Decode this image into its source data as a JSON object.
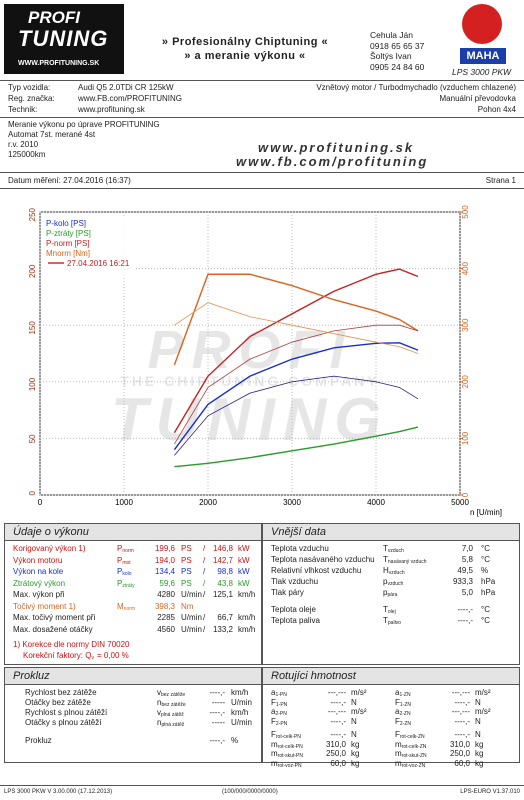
{
  "header": {
    "logo_top": "PROFI",
    "logo_bottom": "TUNING",
    "logo_url": "WWW.PROFITUNING.SK",
    "banner_1": "» Profesionálny Chiptuning «",
    "banner_2": "» a meranie výkonu «",
    "contacts": [
      "Cehula Ján",
      "0918 65 65 37",
      "Šoltýs Ivan",
      "0905 24 84 60"
    ],
    "maha": "MAHA",
    "maha_model": "LPS 3000 PKW"
  },
  "vehicle": {
    "rows": [
      [
        "Typ vozidla:",
        "Audi Q5 2.0TDi CR 125kW"
      ],
      [
        "Reg. značka:",
        "www.FB.com/PROFITUNING"
      ],
      [
        "Technik:",
        "www.profituning.sk"
      ]
    ],
    "right": [
      "Vznětový motor / Turbodmychadlo (vzduchem chlazené)",
      "Manuální převodovka",
      "Pohon 4x4"
    ]
  },
  "notes": [
    "Meranie výkonu po úprave PROFITUNING",
    "Automat 7st. merané 4st",
    "r.v. 2010",
    "125000km"
  ],
  "watermark": [
    "www.profituning.sk",
    "www.fb.com/profituning"
  ],
  "date": "Datum měření: 27.04.2016 (16:37)",
  "page": "Strana 1",
  "chart_watermark": {
    "top": "PROFI",
    "middle": "THE CHIPTUNING COMPANY",
    "bottom": "TUNING"
  },
  "chart_data": {
    "type": "line",
    "x_label": "n [U/min]",
    "legend_date": "27.04.2016 16:21",
    "grid": true,
    "x": [
      1600,
      2000,
      2500,
      3000,
      3500,
      4000,
      4280,
      4500
    ],
    "xlim": [
      0,
      5000
    ],
    "xticks": [
      0,
      1000,
      2000,
      3000,
      4000,
      5000
    ],
    "ylim": [
      0,
      250
    ],
    "yticks": [
      0,
      50,
      100,
      150,
      200,
      250
    ],
    "y2lim": [
      0,
      500
    ],
    "y2ticks": [
      0,
      100,
      200,
      300,
      400,
      500
    ],
    "series": [
      {
        "name": "P-kolo [PS]",
        "color": "#1c2fc4",
        "values": [
          40,
          80,
          105,
          120,
          130,
          134,
          134.4,
          128
        ]
      },
      {
        "name": "P-ztráty [PS]",
        "color": "#2a9a2a",
        "values": [
          25,
          28,
          33,
          39,
          45,
          52,
          56,
          60
        ]
      },
      {
        "name": "P-norm [PS]",
        "color": "#c62020",
        "values": [
          55,
          105,
          140,
          160,
          180,
          195,
          199.6,
          193
        ]
      },
      {
        "name": "Mnorm [Nm]",
        "color": "#d9641e",
        "axis": "y2",
        "values": [
          230,
          390,
          390,
          370,
          345,
          325,
          310,
          290
        ]
      },
      {
        "color": "#20207a",
        "values": [
          35,
          70,
          90,
          100,
          105,
          100,
          95,
          85
        ]
      },
      {
        "color": "#b04040",
        "values": [
          45,
          95,
          120,
          135,
          145,
          150,
          150,
          145
        ]
      },
      {
        "color": "#e09050",
        "axis": "y2",
        "values": [
          300,
          340,
          315,
          300,
          285,
          270,
          262,
          250
        ]
      }
    ]
  },
  "performance": {
    "title": "Údaje o výkonu",
    "separator": "/",
    "rows": [
      {
        "label": "Korigovaný výkon 1)",
        "sym": "P",
        "sub": "norm",
        "v1": "199,6",
        "u1": "PS",
        "v2": "146,8",
        "u2": "kW",
        "color": "#d01010"
      },
      {
        "label": "Výkon motoru",
        "sym": "P",
        "sub": "mot",
        "v1": "194,0",
        "u1": "PS",
        "v2": "142,7",
        "u2": "kW",
        "color": "#d01010"
      },
      {
        "label": "Výkon na kole",
        "sym": "P",
        "sub": "kolo",
        "v1": "134,4",
        "u1": "PS",
        "v2": "98,8",
        "u2": "kW",
        "color": "#1c2fc4"
      },
      {
        "label": "Ztrátový výkon",
        "sym": "P",
        "sub": "ztráty",
        "v1": "59,6",
        "u1": "PS",
        "v2": "43,8",
        "u2": "kW",
        "color": "#2a9a2a"
      },
      {
        "label": "Max. výkon při",
        "v1": "4280",
        "u1": "U/min",
        "v2": "125,1",
        "u2": "km/h",
        "color": "#222222"
      },
      {
        "label": "Točivý moment 1)",
        "sym": "M",
        "sub": "norm",
        "v1": "398,3",
        "u1": "Nm",
        "color": "#d9641e"
      },
      {
        "label": "Max. točivý moment při",
        "v1": "2285",
        "u1": "U/min",
        "v2": "66,7",
        "u2": "km/h",
        "color": "#222222"
      },
      {
        "label": "Max. dosažené otáčky",
        "v1": "4560",
        "u1": "U/min",
        "v2": "133,2",
        "u2": "km/h",
        "color": "#222222"
      }
    ],
    "note_1": "1) Korekce dle normy DIN 70020",
    "note_2": "Korekční faktory: Q",
    "note_2_sub": "v",
    "note_2_end": "=  0,00 %"
  },
  "external": {
    "title": "Vnější data",
    "rows": [
      {
        "label": "Teplota vzduchu",
        "sym": "T",
        "sub": "vzduch",
        "value": "7,0",
        "unit": "°C"
      },
      {
        "label": "Teplota nasávaného vzduchu",
        "sym": "T",
        "sub": "nasávaný vzduch",
        "value": "5,8",
        "unit": "°C"
      },
      {
        "label": "Relativní vlhkost vzduchu",
        "sym": "H",
        "sub": "vzduch",
        "value": "49,5",
        "unit": "%"
      },
      {
        "label": "Tlak vzduchu",
        "sym": "p",
        "sub": "vzduch",
        "value": "933,3",
        "unit": "hPa"
      },
      {
        "label": "Tlak páry",
        "sym": "p",
        "sub": "pára",
        "value": "5,0",
        "unit": "hPa"
      },
      {
        "label": "Teplota oleje",
        "sym": "T",
        "sub": "olej",
        "value": "----,-",
        "unit": "°C"
      },
      {
        "label": "Teplota paliva",
        "sym": "T",
        "sub": "palivo",
        "value": "----,-",
        "unit": "°C"
      }
    ]
  },
  "slip": {
    "title": "Prokluz",
    "rows": [
      {
        "label": "Rychlost bez zátěže",
        "sym": "v",
        "sub": "bez zátěže",
        "value": "----,-",
        "unit": "km/h"
      },
      {
        "label": "Otáčky bez zátěže",
        "sym": "n",
        "sub": "bez zátěže",
        "value": "-----",
        "unit": "U/min"
      },
      {
        "label": "Rychlost s plnou zátěží",
        "sym": "v",
        "sub": "plná zátěž",
        "value": "----,-",
        "unit": "km/h"
      },
      {
        "label": "Otáčky s plnou zátěží",
        "sym": "n",
        "sub": "plná zátěž",
        "value": "-----",
        "unit": "U/min"
      },
      {
        "label": "Prokluz",
        "value": "----,-",
        "unit": "%"
      }
    ]
  },
  "rotating": {
    "title": "Rotujíci hmotnost",
    "rows": [
      [
        {
          "sym": "a",
          "sub": "1-PN",
          "value": "---,---",
          "unit": "m/s²"
        },
        {
          "sym": "a",
          "sub": "1-ZN",
          "value": "---,---",
          "unit": "m/s²"
        }
      ],
      [
        {
          "sym": "F",
          "sub": "1-PN",
          "value": "----,-",
          "unit": "N"
        },
        {
          "sym": "F",
          "sub": "1-ZN",
          "value": "----,-",
          "unit": "N"
        }
      ],
      [
        {
          "sym": "a",
          "sub": "2-PN",
          "value": "---,---",
          "unit": "m/s²"
        },
        {
          "sym": "a",
          "sub": "2-ZN",
          "value": "---,---",
          "unit": "m/s²"
        }
      ],
      [
        {
          "sym": "F",
          "sub": "2-PN",
          "value": "----,-",
          "unit": "N"
        },
        {
          "sym": "F",
          "sub": "2-ZN",
          "value": "----,-",
          "unit": "N"
        }
      ],
      [
        {
          "sym": "F",
          "sub": "rot-celk-PN",
          "value": "----,-",
          "unit": "N"
        },
        {
          "sym": "F",
          "sub": "rot-celk-ZN",
          "value": "----,-",
          "unit": "N"
        }
      ],
      [
        {
          "sym": "m",
          "sub": "rot-celk-PN",
          "value": "310,0",
          "unit": "kg"
        },
        {
          "sym": "m",
          "sub": "rot-celk-ZN",
          "value": "310,0",
          "unit": "kg"
        }
      ],
      [
        {
          "sym": "m",
          "sub": "rot-skut-PN",
          "value": "250,0",
          "unit": "kg"
        },
        {
          "sym": "m",
          "sub": "rot-skut-ZN",
          "value": "250,0",
          "unit": "kg"
        }
      ],
      [
        {
          "sym": "m",
          "sub": "rot-voz-PN",
          "value": "60,0",
          "unit": "kg"
        },
        {
          "sym": "m",
          "sub": "rot-voz-ZN",
          "value": "60,0",
          "unit": "kg"
        }
      ]
    ]
  },
  "footer": [
    "LPS 3000 PKW V 3.00.000 (17.12.2013)",
    "(100/000/0000/0000)",
    "LPS-EURO V1.37.010"
  ]
}
